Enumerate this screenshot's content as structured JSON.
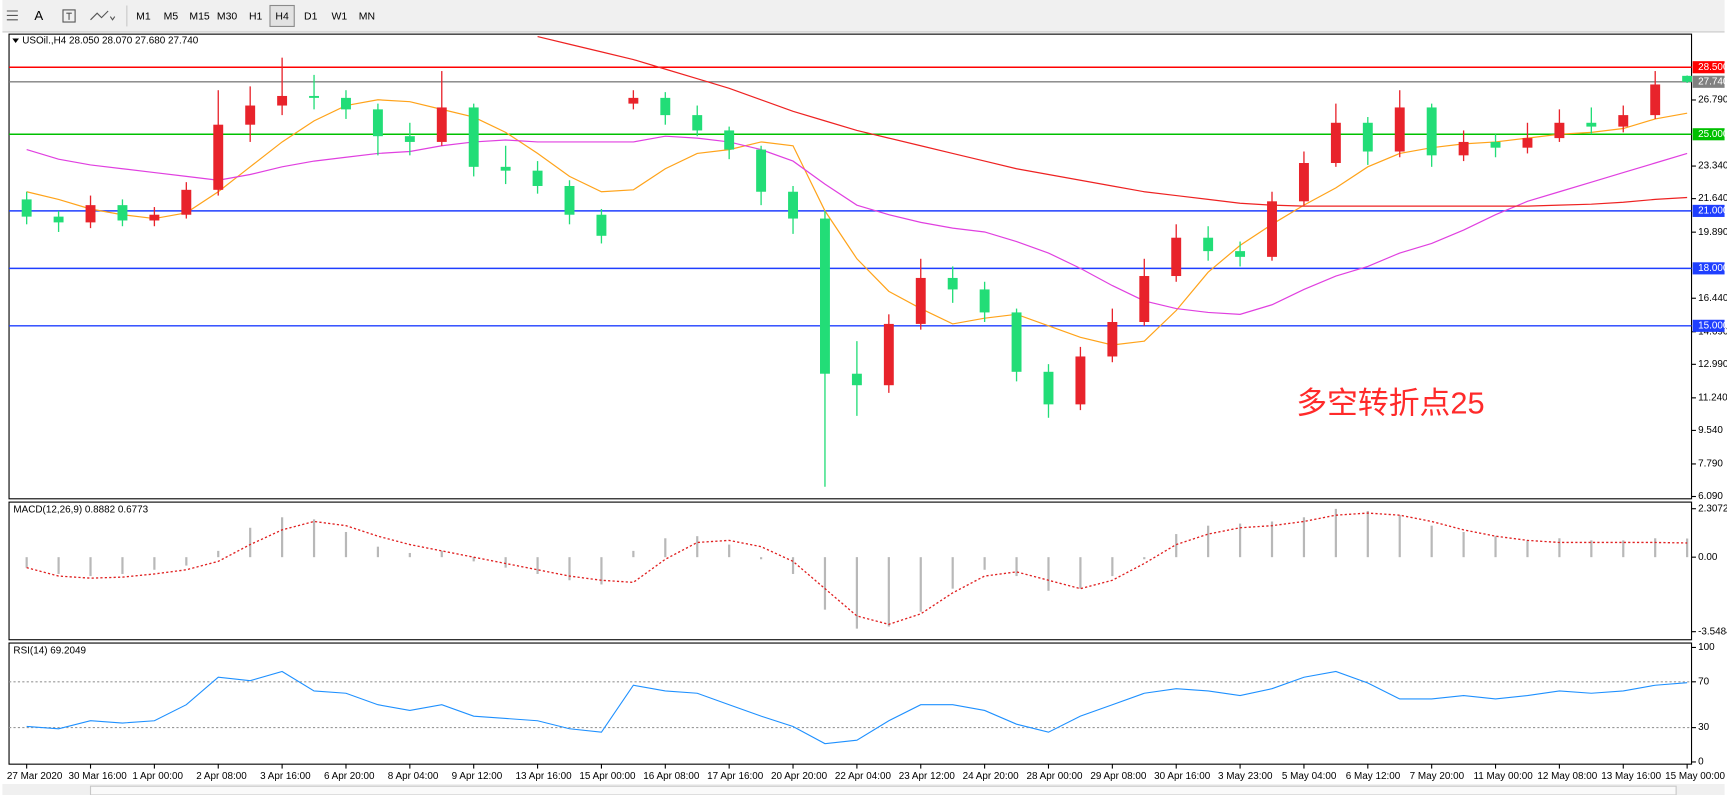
{
  "toolbar": {
    "text_tool": "A",
    "periods": [
      "M1",
      "M5",
      "M15",
      "M30",
      "H1",
      "H4",
      "D1",
      "W1",
      "MN"
    ],
    "active": "H4"
  },
  "chart_data": [
    {
      "type": "candlestick",
      "title": "USOil.,H4  28.050 28.070 27.680 27.740",
      "categories": [
        "27 Mar 2020",
        null,
        "30 Mar 16:00",
        null,
        "1 Apr 00:00",
        null,
        "2 Apr 08:00",
        null,
        "3 Apr 16:00",
        null,
        "6 Apr 20:00",
        null,
        "8 Apr 04:00",
        null,
        "9 Apr 12:00",
        null,
        "13 Apr 16:00",
        null,
        "15 Apr 00:00",
        null,
        "16 Apr 08:00",
        null,
        "17 Apr 16:00",
        null,
        "20 Apr 20:00",
        null,
        "22 Apr 04:00",
        null,
        "23 Apr 12:00",
        null,
        "24 Apr 20:00",
        null,
        "28 Apr 00:00",
        null,
        "29 Apr 08:00",
        null,
        "30 Apr 16:00",
        null,
        "3 May 23:00",
        null,
        "5 May 04:00",
        null,
        "6 May 12:00",
        null,
        "7 May 20:00",
        null,
        "11 May 00:00",
        null,
        "12 May 08:00",
        null,
        "13 May 16:00",
        null,
        "15 May 00:00"
      ],
      "open": [
        21.6,
        20.7,
        20.4,
        21.3,
        20.5,
        20.8,
        22.1,
        25.5,
        26.5,
        27.0,
        26.9,
        26.3,
        24.9,
        24.6,
        26.4,
        23.3,
        23.1,
        22.3,
        20.8,
        26.6,
        26.9,
        26.0,
        25.2,
        24.2,
        22.0,
        20.6,
        12.5,
        11.9,
        15.1,
        17.5,
        16.9,
        15.7,
        12.6,
        10.9,
        13.4,
        15.2,
        17.6,
        19.6,
        18.9,
        18.6,
        21.5,
        23.5,
        25.6,
        24.1,
        26.4,
        23.9,
        24.6,
        24.3,
        24.8,
        25.6,
        25.4,
        26.0,
        28.05
      ],
      "high": [
        22.0,
        21.0,
        21.8,
        21.6,
        21.2,
        22.5,
        27.3,
        27.5,
        29.0,
        28.1,
        27.3,
        26.6,
        25.6,
        28.3,
        26.6,
        24.4,
        23.6,
        22.6,
        21.1,
        27.3,
        27.2,
        26.5,
        25.4,
        24.4,
        22.3,
        21.0,
        14.2,
        15.6,
        18.5,
        18.1,
        17.3,
        15.9,
        13.0,
        13.9,
        15.9,
        18.5,
        20.3,
        20.2,
        19.4,
        22.0,
        24.1,
        26.6,
        25.9,
        27.3,
        26.6,
        25.2,
        25.0,
        25.6,
        26.3,
        26.4,
        26.5,
        28.3,
        28.07
      ],
      "low": [
        20.3,
        19.9,
        20.1,
        20.2,
        20.2,
        20.6,
        21.8,
        24.6,
        26.0,
        26.3,
        25.8,
        23.9,
        23.9,
        24.4,
        22.8,
        22.4,
        21.9,
        20.3,
        19.3,
        26.3,
        25.5,
        24.9,
        23.7,
        21.3,
        19.8,
        6.6,
        10.3,
        11.5,
        14.8,
        16.2,
        15.2,
        12.1,
        10.2,
        10.6,
        13.1,
        15.0,
        17.3,
        18.4,
        18.1,
        18.4,
        21.3,
        23.3,
        23.4,
        23.8,
        23.3,
        23.6,
        23.8,
        24.0,
        24.6,
        25.0,
        25.1,
        25.8,
        27.68
      ],
      "close": [
        20.7,
        20.4,
        21.3,
        20.5,
        20.8,
        22.1,
        25.5,
        26.5,
        27.0,
        26.9,
        26.3,
        24.9,
        24.6,
        26.4,
        23.3,
        23.1,
        22.3,
        20.8,
        19.7,
        26.9,
        26.0,
        25.2,
        24.2,
        22.0,
        20.6,
        12.5,
        11.9,
        15.1,
        17.5,
        16.9,
        15.7,
        12.6,
        10.9,
        13.4,
        15.2,
        17.6,
        19.6,
        18.9,
        18.6,
        21.5,
        23.5,
        25.6,
        24.1,
        26.4,
        23.9,
        24.6,
        24.3,
        24.8,
        25.6,
        25.4,
        26.0,
        27.6,
        27.74
      ],
      "up_color": "#e8232b",
      "down_color": "#22dd77",
      "series": [
        {
          "color": "#ffa31a",
          "values": [
            22.0,
            21.6,
            21.1,
            20.8,
            20.6,
            20.9,
            22.0,
            23.3,
            24.6,
            25.7,
            26.5,
            26.8,
            26.7,
            26.3,
            25.9,
            25.1,
            24.0,
            22.8,
            22.0,
            22.1,
            23.2,
            24.0,
            24.2,
            24.6,
            24.4,
            21.0,
            18.5,
            16.8,
            15.9,
            15.1,
            15.4,
            15.6,
            15.0,
            14.4,
            14.0,
            14.2,
            15.8,
            17.8,
            19.2,
            20.3,
            21.3,
            22.2,
            23.3,
            24.0,
            24.3,
            24.5,
            24.6,
            24.8,
            25.0,
            25.1,
            25.3,
            25.8,
            26.1
          ]
        },
        {
          "color": "#e040e0",
          "values": [
            24.2,
            23.7,
            23.4,
            23.2,
            23.0,
            22.8,
            22.6,
            22.9,
            23.3,
            23.6,
            23.8,
            24.0,
            24.1,
            24.4,
            24.6,
            24.7,
            24.6,
            24.6,
            24.6,
            24.6,
            24.9,
            24.8,
            24.6,
            24.2,
            23.6,
            22.4,
            21.3,
            20.8,
            20.4,
            20.1,
            19.9,
            19.4,
            18.8,
            18.0,
            17.1,
            16.3,
            15.9,
            15.7,
            15.6,
            16.1,
            16.9,
            17.6,
            18.1,
            18.8,
            19.3,
            20.0,
            20.8,
            21.5,
            22.0,
            22.5,
            23.0,
            23.5,
            24.0
          ]
        },
        {
          "color": "#ee2222",
          "values": [
            null,
            null,
            null,
            null,
            null,
            null,
            null,
            null,
            null,
            null,
            null,
            null,
            null,
            null,
            null,
            null,
            30.1,
            29.7,
            29.3,
            28.9,
            28.4,
            27.9,
            27.4,
            26.8,
            26.2,
            25.7,
            25.2,
            24.8,
            24.4,
            24.0,
            23.6,
            23.2,
            22.9,
            22.6,
            22.3,
            22.0,
            21.8,
            21.6,
            21.4,
            21.3,
            21.25,
            21.25,
            21.25,
            21.25,
            21.25,
            21.25,
            21.25,
            21.25,
            21.3,
            21.35,
            21.45,
            21.6,
            21.7
          ]
        }
      ],
      "levels": [
        {
          "value": 28.5,
          "label": "28.500",
          "color": "#ff0000"
        },
        {
          "value": 27.74,
          "label": "27.740",
          "color": "#808080"
        },
        {
          "value": 25.0,
          "label": "25.000",
          "color": "#00c000"
        },
        {
          "value": 21.0,
          "label": "21.000",
          "color": "#1f3fff"
        },
        {
          "value": 18.0,
          "label": "18.000",
          "color": "#1f3fff"
        },
        {
          "value": 15.0,
          "label": "15.000",
          "color": "#1f3fff"
        }
      ],
      "ylim": [
        5.97,
        30.17
      ],
      "yticks": [
        {
          "value": 26.79,
          "label": "26.790"
        },
        {
          "value": 23.34,
          "label": "23.340"
        },
        {
          "value": 21.64,
          "label": "21.640"
        },
        {
          "value": 19.89,
          "label": "19.890"
        },
        {
          "value": 16.44,
          "label": "16.440"
        },
        {
          "value": 14.69,
          "label": "14.690"
        },
        {
          "value": 12.99,
          "label": "12.990"
        },
        {
          "value": 11.24,
          "label": "11.240"
        },
        {
          "value": 9.54,
          "label": "9.540"
        },
        {
          "value": 7.79,
          "label": "7.790"
        },
        {
          "value": 6.09,
          "label": "6.090"
        }
      ],
      "annotation": "多空转折点25",
      "annotation_color": "#ff2a2a"
    },
    {
      "type": "macd",
      "title": "MACD(12,26,9) 0.8882 0.6773",
      "histogram": [
        -0.5,
        -0.8,
        -0.9,
        -0.8,
        -0.6,
        -0.4,
        0.3,
        1.4,
        1.9,
        1.8,
        1.2,
        0.5,
        0.2,
        0.3,
        -0.2,
        -0.5,
        -0.8,
        -1.1,
        -1.3,
        0.3,
        0.9,
        1.0,
        0.6,
        -0.1,
        -0.8,
        -2.5,
        -3.4,
        -3.3,
        -2.6,
        -1.5,
        -0.6,
        -0.9,
        -1.6,
        -1.5,
        -0.9,
        -0.1,
        1.1,
        1.5,
        1.6,
        1.7,
        1.9,
        2.3,
        2.2,
        2.0,
        1.5,
        1.2,
        1.0,
        0.8,
        0.9,
        0.8,
        0.8,
        0.9,
        0.8882
      ],
      "signal": [
        -0.5,
        -0.9,
        -1.0,
        -0.95,
        -0.8,
        -0.6,
        -0.2,
        0.6,
        1.3,
        1.7,
        1.5,
        1.0,
        0.6,
        0.3,
        0.0,
        -0.3,
        -0.6,
        -0.9,
        -1.1,
        -1.2,
        -0.1,
        0.7,
        0.8,
        0.5,
        -0.2,
        -1.5,
        -2.8,
        -3.2,
        -2.7,
        -1.7,
        -0.9,
        -0.7,
        -1.1,
        -1.5,
        -1.1,
        -0.3,
        0.6,
        1.1,
        1.4,
        1.5,
        1.7,
        2.0,
        2.1,
        2.0,
        1.7,
        1.3,
        1.0,
        0.8,
        0.7,
        0.7,
        0.7,
        0.7,
        0.6773
      ],
      "histogram_color": "#b8b8b8",
      "signal_color": "#e02020",
      "ylim": [
        -3.88,
        2.57
      ],
      "yticks": [
        {
          "value": 2.3072,
          "label": "2.3072"
        },
        {
          "value": 0,
          "label": "0.00"
        },
        {
          "value": -3.5484,
          "label": "-3.5484"
        }
      ]
    },
    {
      "type": "line",
      "title": "RSI(14) 69.2049",
      "series": [
        {
          "color": "#1e90ff",
          "values": [
            31,
            29,
            36,
            34,
            36,
            50,
            74,
            71,
            79,
            62,
            60,
            50,
            45,
            50,
            40,
            38,
            36,
            29,
            26,
            67,
            62,
            60,
            50,
            40,
            31,
            16,
            19,
            36,
            50,
            50,
            45,
            33,
            26,
            40,
            50,
            60,
            64,
            62,
            58,
            64,
            74,
            79,
            69,
            55,
            55,
            58,
            55,
            58,
            62,
            60,
            62,
            67,
            69.2049
          ]
        }
      ],
      "levels": [
        70,
        30
      ],
      "ylim": [
        0,
        100
      ],
      "yticks": [
        100,
        70,
        30,
        0
      ]
    }
  ]
}
